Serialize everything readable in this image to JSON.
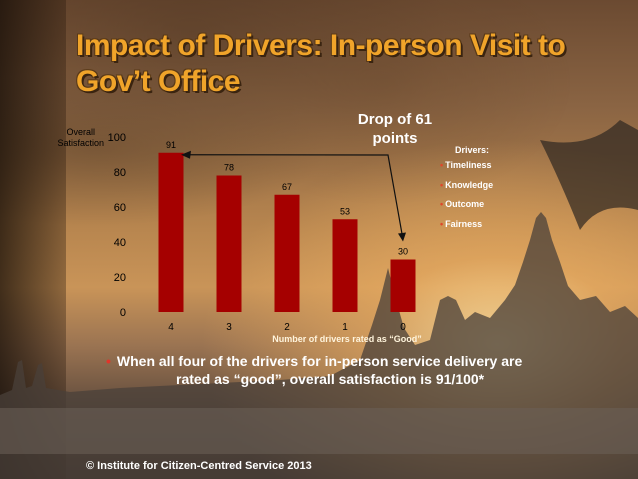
{
  "slide": {
    "title": "Impact of Drivers: In-person Visit to Gov’t Office",
    "annotation": [
      "Drop of 61",
      "points"
    ],
    "legend": {
      "title": "Drivers:",
      "items": [
        "Timeliness",
        "Knowledge",
        "Outcome",
        "Fairness"
      ],
      "marker_color": "#e0462a"
    },
    "bullet": {
      "line1": "When all four of the drivers for in-person service delivery are",
      "line2": "rated as “good”, overall satisfaction is 91/100*"
    },
    "copyright": "© Institute for Citizen-Centred Service 2013"
  },
  "chart_data": {
    "type": "bar",
    "categories": [
      "4",
      "3",
      "2",
      "1",
      "0"
    ],
    "values": [
      91,
      78,
      67,
      53,
      30
    ],
    "ylim": [
      0,
      100
    ],
    "yticks": [
      0,
      20,
      40,
      60,
      80,
      100
    ],
    "ylabel": [
      "Overall",
      "Satisfaction"
    ],
    "xlabel": "Number of drivers rated as “Good”",
    "bar_color": "#a50000",
    "title": ""
  }
}
